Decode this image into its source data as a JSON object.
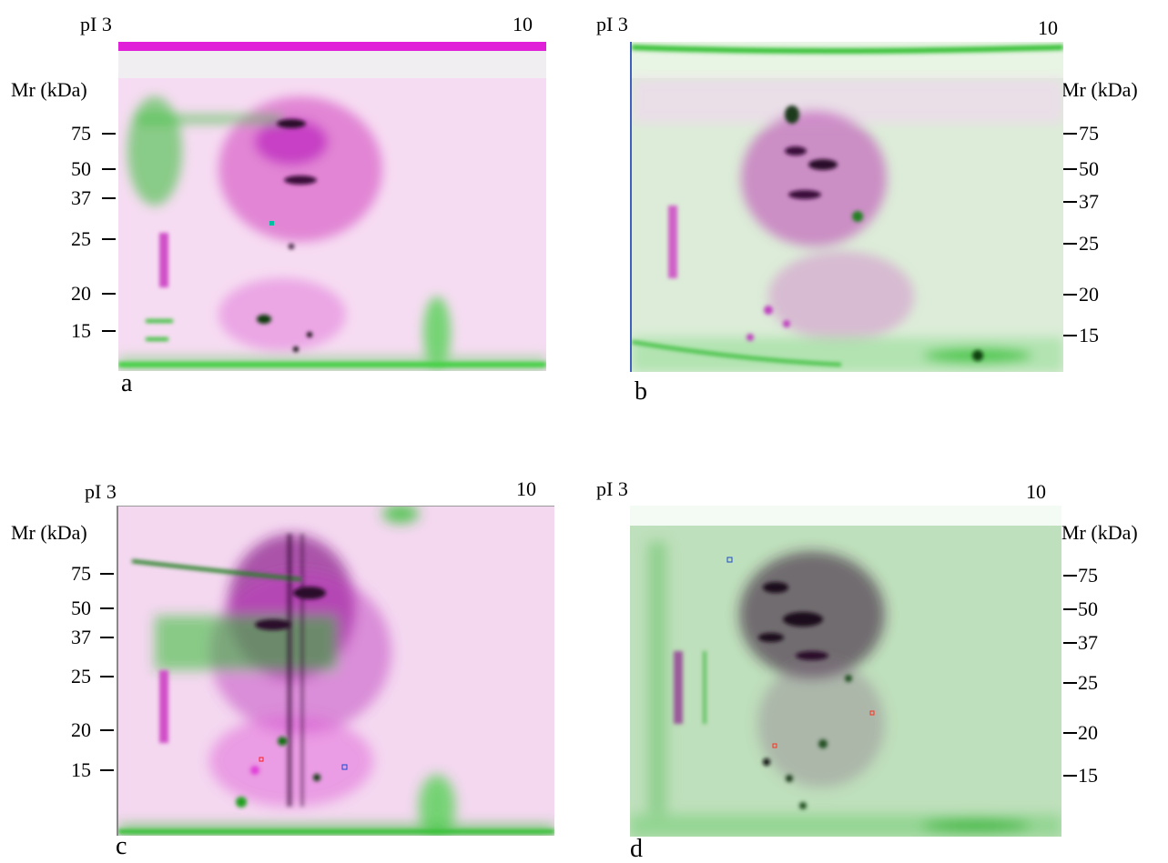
{
  "axis": {
    "pi_label": "pI 3",
    "pi_high": "10",
    "mr_label": "Mr (kDa)",
    "mr_markers": [
      "75",
      "50",
      "37",
      "25",
      "20",
      "15"
    ]
  },
  "panels": [
    {
      "letter": "a"
    },
    {
      "letter": "b"
    },
    {
      "letter": "c"
    },
    {
      "letter": "d"
    }
  ],
  "colors": {
    "magenta": "#e040e0",
    "green": "#22cc22",
    "dark": "#2a0a2a"
  }
}
